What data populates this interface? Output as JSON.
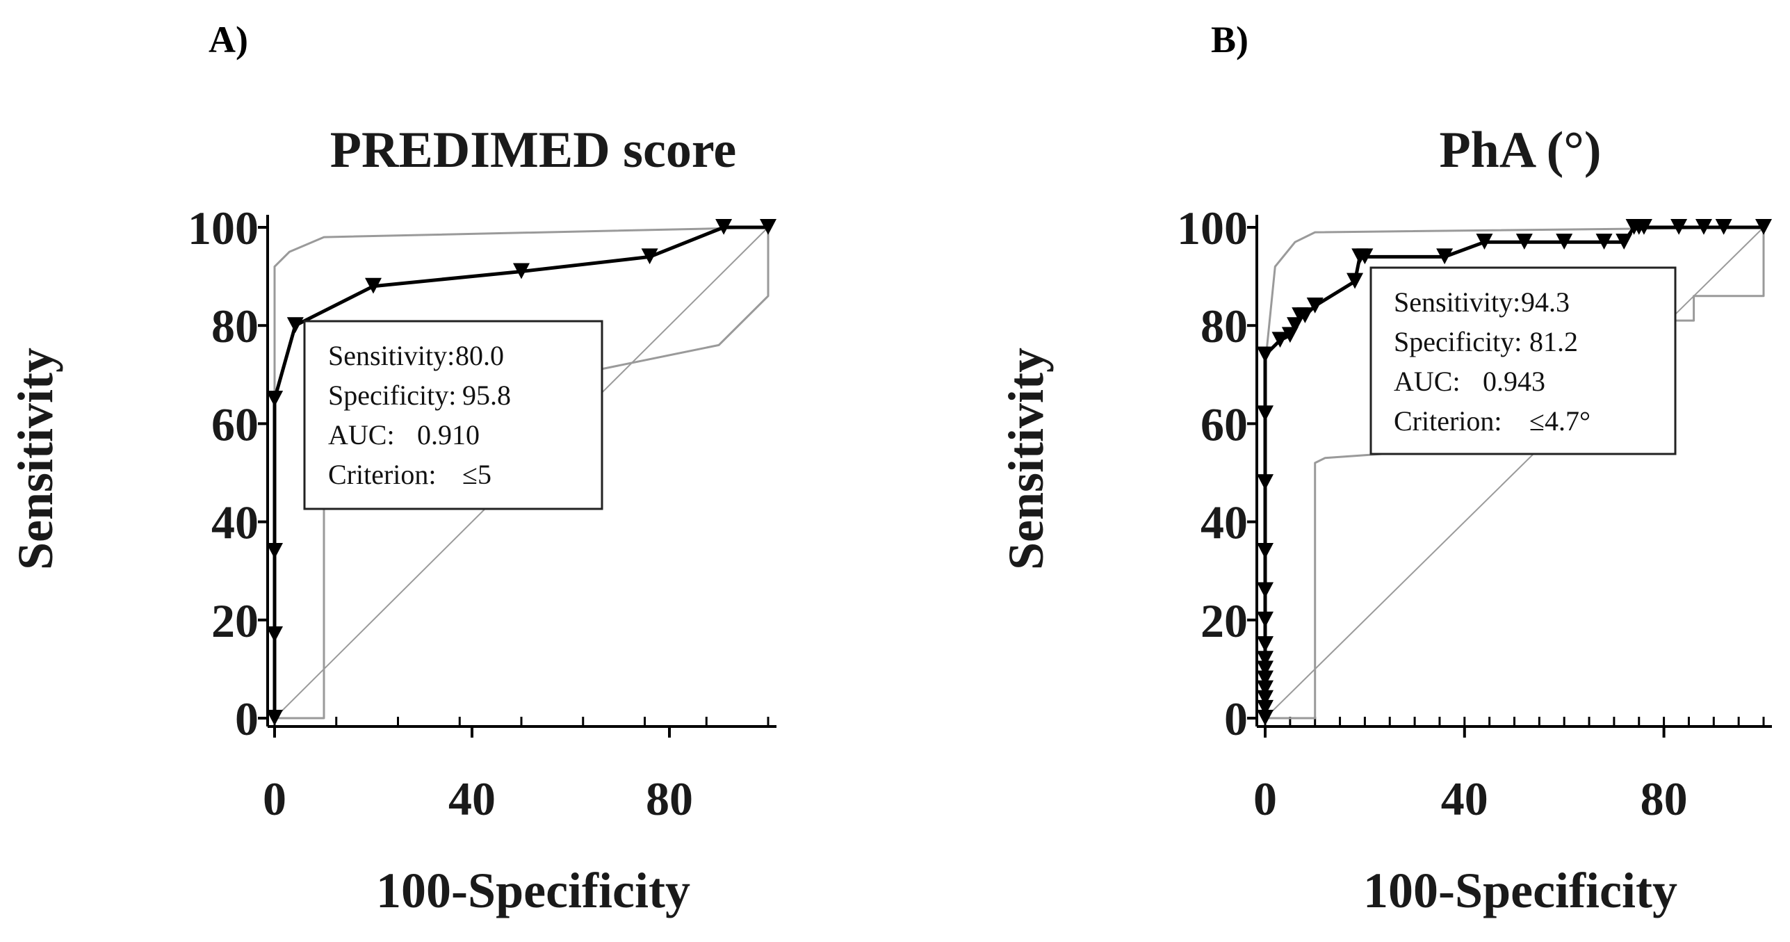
{
  "chart_data": [
    {
      "type": "line",
      "panel": "A)",
      "title": "PREDIMED score",
      "xlabel": "100-Specificity",
      "ylabel": "Sensitivity",
      "xlim": [
        0,
        100
      ],
      "ylim": [
        0,
        100
      ],
      "xticks": [
        "0",
        "40",
        "80"
      ],
      "yticks": [
        "0",
        "20",
        "40",
        "60",
        "80",
        "100"
      ],
      "grid": false,
      "legend_placement": "center",
      "series": [
        {
          "role": "roc",
          "color": "#000000",
          "marker": "triangle-down",
          "x": [
            0,
            0,
            0,
            0,
            0,
            4.2,
            20,
            50,
            76,
            91,
            100
          ],
          "y": [
            0,
            17,
            34,
            65,
            65,
            80,
            88,
            91,
            94,
            100,
            100
          ]
        },
        {
          "role": "ci-upper",
          "color": "#9a9a9a",
          "x": [
            0,
            0,
            3,
            10,
            100,
            100
          ],
          "y": [
            0,
            92,
            95,
            98,
            100,
            100
          ]
        },
        {
          "role": "ci-lower",
          "color": "#9a9a9a",
          "x": [
            0,
            10,
            10,
            12,
            90,
            100,
            100
          ],
          "y": [
            0,
            0,
            48,
            60,
            76,
            86,
            100
          ]
        },
        {
          "role": "diagonal",
          "color": "#9a9a9a",
          "x": [
            0,
            100
          ],
          "y": [
            0,
            100
          ]
        }
      ],
      "stats": [
        {
          "label": "Sensitivity:",
          "value": "80.0"
        },
        {
          "label": "Specificity:",
          "value": "95.8"
        },
        {
          "label": "AUC:",
          "value": "0.910"
        },
        {
          "label": "Criterion:",
          "value": "≤5"
        }
      ]
    },
    {
      "type": "line",
      "panel": "B)",
      "title": "PhA (°)",
      "xlabel": "100-Specificity",
      "ylabel": "Sensitivity",
      "xlim": [
        0,
        100
      ],
      "ylim": [
        0,
        100
      ],
      "xticks": [
        "0",
        "40",
        "80"
      ],
      "yticks": [
        "0",
        "20",
        "40",
        "60",
        "80",
        "100"
      ],
      "grid": false,
      "legend_placement": "top-right",
      "series": [
        {
          "role": "roc",
          "color": "#000000",
          "marker": "triangle-down",
          "x": [
            0,
            0,
            0,
            0,
            0,
            0,
            0,
            0,
            0,
            0,
            0,
            0,
            0,
            0,
            0,
            3,
            5,
            6,
            7,
            8,
            10,
            18,
            19,
            20,
            36,
            44,
            52,
            60,
            68,
            72,
            74,
            75,
            76,
            83,
            88,
            92,
            100
          ],
          "y": [
            0,
            2,
            4,
            6,
            8,
            10,
            12,
            15,
            20,
            26,
            34,
            48,
            62,
            74,
            74,
            77,
            78,
            80,
            82,
            82,
            84,
            89,
            94,
            94,
            94,
            97,
            97,
            97,
            97,
            97,
            100,
            100,
            100,
            100,
            100,
            100,
            100
          ]
        },
        {
          "role": "ci-upper",
          "color": "#9a9a9a",
          "x": [
            0,
            0,
            2,
            6,
            10,
            100,
            100
          ],
          "y": [
            0,
            72,
            92,
            97,
            99,
            100,
            100
          ]
        },
        {
          "role": "ci-lower",
          "color": "#9a9a9a",
          "x": [
            0,
            10,
            10,
            12,
            40,
            82,
            82,
            86,
            86,
            100,
            100
          ],
          "y": [
            0,
            0,
            52,
            53,
            55,
            81,
            81,
            81,
            86,
            86,
            100
          ]
        },
        {
          "role": "diagonal",
          "color": "#9a9a9a",
          "x": [
            0,
            100
          ],
          "y": [
            0,
            100
          ]
        }
      ],
      "stats": [
        {
          "label": "Sensitivity:",
          "value": "94.3"
        },
        {
          "label": "Specificity:",
          "value": "81.2"
        },
        {
          "label": "AUC:",
          "value": "0.943"
        },
        {
          "label": "Criterion:",
          "value": "≤4.7°"
        }
      ]
    }
  ]
}
